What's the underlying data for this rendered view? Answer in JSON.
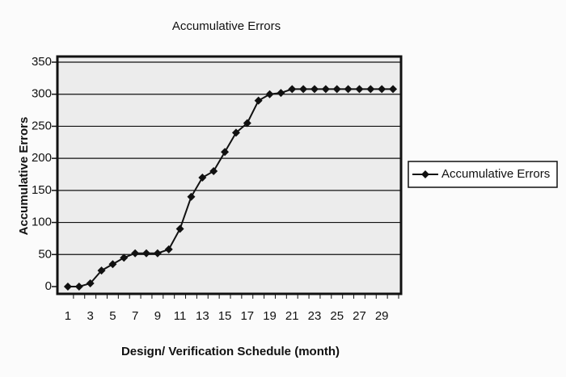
{
  "chart_data": {
    "type": "line",
    "title": "Accumulative Errors",
    "x_label": "Design/ Verification Schedule (month)",
    "y_label": "Accumulative Errors",
    "categories": [
      "1",
      null,
      "3",
      null,
      "5",
      null,
      "7",
      null,
      "9",
      null,
      "11",
      null,
      "13",
      null,
      "15",
      null,
      "17",
      null,
      "19",
      null,
      "21",
      null,
      "23",
      null,
      "25",
      null,
      "27",
      null,
      "29",
      null
    ],
    "series": [
      {
        "name": "Accumulative Errors",
        "color": "#111111",
        "values": [
          0,
          0,
          5,
          25,
          35,
          45,
          52,
          52,
          52,
          58,
          90,
          140,
          170,
          180,
          210,
          240,
          255,
          290,
          300,
          302,
          308,
          308,
          308,
          308,
          308,
          308,
          308,
          308,
          308,
          308
        ]
      }
    ],
    "ylim": [
      0,
      350
    ],
    "yticks": [
      0,
      50,
      100,
      150,
      200,
      250,
      300,
      350
    ],
    "grid": true,
    "legend": "right"
  }
}
